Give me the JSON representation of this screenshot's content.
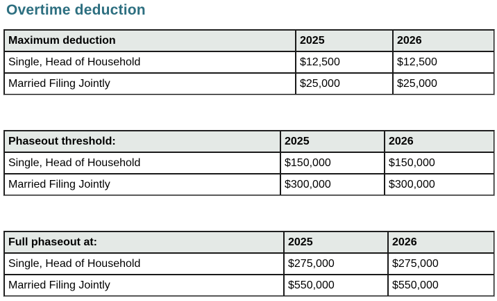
{
  "page": {
    "title": "Overtime deduction"
  },
  "colors": {
    "accent": "#2d6f80",
    "header-bg": "#e4e9e6",
    "border-dark": "#262626",
    "border-gray": "#9a9a9a",
    "text": "#000000"
  },
  "tables": [
    {
      "name": "maximum-deduction",
      "header": [
        "Maximum deduction",
        "2025",
        "2026"
      ],
      "rows": [
        [
          "Single, Head of Household",
          "$12,500",
          "$12,500"
        ],
        [
          "Married Filing Jointly",
          "$25,000",
          "$25,000"
        ]
      ]
    },
    {
      "name": "phaseout-threshold",
      "header": [
        "Phaseout threshold:",
        "2025",
        "2026"
      ],
      "rows": [
        [
          "Single, Head of Household",
          "$150,000",
          "$150,000"
        ],
        [
          "Married Filing Jointly",
          "$300,000",
          "$300,000"
        ]
      ]
    },
    {
      "name": "full-phaseout",
      "header": [
        "Full phaseout at:",
        "2025",
        "2026"
      ],
      "rows": [
        [
          "Single, Head of Household",
          "$275,000",
          "$275,000"
        ],
        [
          "Married Filing Jointly",
          "$550,000",
          "$550,000"
        ]
      ]
    }
  ]
}
